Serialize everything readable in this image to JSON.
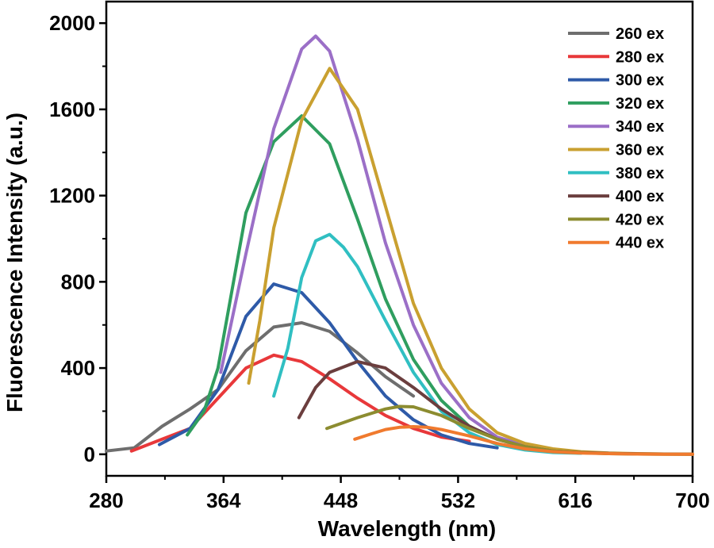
{
  "chart_data": {
    "type": "line",
    "xlabel": "Wavelength (nm)",
    "ylabel": "Fluorescence Intensity (a.u.)",
    "xlim": [
      280,
      700
    ],
    "ylim": [
      -100,
      2100
    ],
    "xticks": [
      280,
      364,
      448,
      532,
      616,
      700
    ],
    "yticks": [
      0,
      400,
      800,
      1200,
      1600,
      2000
    ],
    "grid": false,
    "legend_position": "top-right",
    "series": [
      {
        "name": "260 ex",
        "color": "#6e6e6e",
        "x": [
          280,
          300,
          320,
          340,
          360,
          380,
          400,
          420,
          440,
          460,
          480,
          500
        ],
        "y": [
          15,
          30,
          130,
          210,
          300,
          480,
          590,
          610,
          570,
          470,
          360,
          270
        ]
      },
      {
        "name": "280 ex",
        "color": "#e8383a",
        "x": [
          298,
          320,
          340,
          360,
          380,
          400,
          420,
          440,
          460,
          480,
          500,
          520,
          540
        ],
        "y": [
          15,
          70,
          120,
          260,
          400,
          460,
          430,
          350,
          260,
          180,
          120,
          80,
          60
        ]
      },
      {
        "name": "300 ex",
        "color": "#2e5aa8",
        "x": [
          318,
          340,
          360,
          380,
          400,
          420,
          440,
          460,
          480,
          500,
          520,
          540,
          560
        ],
        "y": [
          45,
          120,
          300,
          640,
          790,
          750,
          610,
          430,
          270,
          160,
          90,
          50,
          30
        ]
      },
      {
        "name": "320 ex",
        "color": "#2f9e5f",
        "x": [
          338,
          350,
          360,
          380,
          400,
          420,
          440,
          460,
          480,
          500,
          520,
          540,
          560,
          580,
          600,
          620
        ],
        "y": [
          90,
          200,
          400,
          1120,
          1450,
          1570,
          1440,
          1090,
          720,
          440,
          250,
          130,
          70,
          35,
          15,
          5
        ]
      },
      {
        "name": "340 ex",
        "color": "#9b6fc7",
        "x": [
          362,
          380,
          400,
          420,
          430,
          440,
          460,
          480,
          500,
          520,
          540,
          560,
          580,
          600,
          620,
          640
        ],
        "y": [
          380,
          930,
          1510,
          1880,
          1940,
          1870,
          1460,
          980,
          600,
          330,
          170,
          80,
          40,
          20,
          10,
          5
        ]
      },
      {
        "name": "360 ex",
        "color": "#c9a030",
        "x": [
          382,
          390,
          400,
          420,
          440,
          460,
          480,
          500,
          520,
          540,
          560,
          580,
          600,
          620,
          640,
          660,
          680,
          700
        ],
        "y": [
          330,
          620,
          1050,
          1550,
          1790,
          1600,
          1150,
          700,
          400,
          210,
          100,
          50,
          25,
          12,
          6,
          3,
          1,
          0
        ]
      },
      {
        "name": "380 ex",
        "color": "#30bfc2",
        "x": [
          400,
          410,
          420,
          430,
          440,
          450,
          460,
          480,
          500,
          520,
          540,
          560,
          580,
          600,
          620
        ],
        "y": [
          270,
          490,
          820,
          990,
          1020,
          960,
          870,
          620,
          380,
          200,
          100,
          45,
          20,
          8,
          5
        ]
      },
      {
        "name": "400 ex",
        "color": "#6b3e3e",
        "x": [
          418,
          430,
          440,
          460,
          480,
          500,
          520,
          540,
          560,
          580,
          600,
          620,
          640,
          660,
          680,
          700
        ],
        "y": [
          170,
          310,
          380,
          430,
          400,
          310,
          210,
          130,
          70,
          35,
          15,
          8,
          4,
          2,
          1,
          0
        ]
      },
      {
        "name": "420 ex",
        "color": "#8c8c30",
        "x": [
          438,
          460,
          480,
          490,
          500,
          520,
          540,
          560,
          580,
          600,
          620,
          640,
          660,
          680,
          700
        ],
        "y": [
          120,
          170,
          210,
          222,
          220,
          180,
          120,
          70,
          35,
          15,
          7,
          3,
          1,
          0,
          0
        ]
      },
      {
        "name": "440 ex",
        "color": "#f07a2e",
        "x": [
          458,
          470,
          480,
          490,
          500,
          510,
          520,
          540,
          560,
          580,
          600,
          620,
          640,
          660,
          680,
          700
        ],
        "y": [
          70,
          95,
          115,
          125,
          128,
          125,
          115,
          85,
          50,
          25,
          12,
          6,
          3,
          1,
          0,
          0
        ]
      }
    ]
  }
}
